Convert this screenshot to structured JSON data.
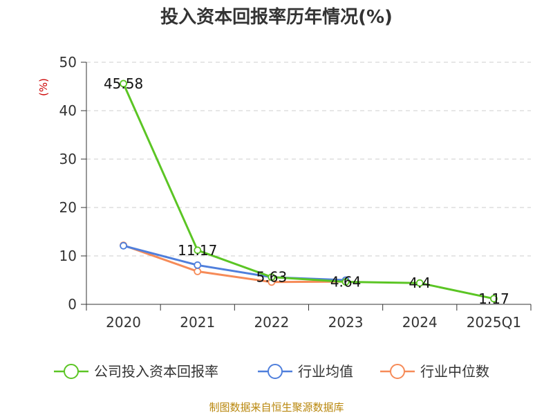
{
  "chart_data": {
    "type": "line",
    "title": "投入资本回报率历年情况(%)",
    "ylabel": "(%)",
    "xlabel": "",
    "categories": [
      "2020",
      "2021",
      "2022",
      "2023",
      "2024",
      "2025Q1"
    ],
    "ylim": [
      0,
      50
    ],
    "yticks": [
      0,
      10,
      20,
      30,
      40,
      50
    ],
    "grid": true,
    "legend_position": "bottom",
    "series": [
      {
        "name": "公司投入资本回报率",
        "color": "#5bc524",
        "values": [
          45.58,
          11.17,
          5.63,
          4.64,
          4.4,
          1.17
        ],
        "data_labels": [
          "45.58",
          "11.17",
          "5.63",
          "4.64",
          "4.4",
          "1.17"
        ]
      },
      {
        "name": "行业均值",
        "color": "#4f7fdc",
        "values": [
          12.1,
          8.1,
          5.6,
          5.0,
          null,
          null
        ]
      },
      {
        "name": "行业中位数",
        "color": "#f68b58",
        "values": [
          12.2,
          6.8,
          4.6,
          4.7,
          null,
          null
        ]
      }
    ]
  },
  "footer": {
    "source": "制图数据来自恒生聚源数据库"
  }
}
